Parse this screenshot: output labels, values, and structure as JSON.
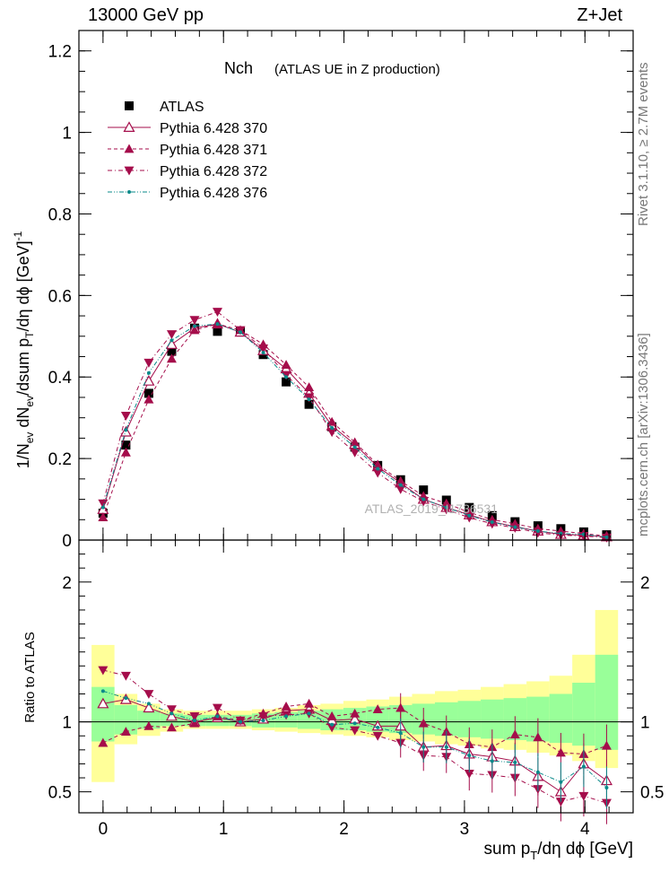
{
  "header": {
    "left": "13000 GeV pp",
    "right": "Z+Jet"
  },
  "side_text": {
    "rivet": "Rivet 3.1.10, ≥ 2.7M events",
    "mcplots": "mcplots.cern.ch [arXiv:1306.3436]"
  },
  "watermark": "ATLAS_2019_I1736531",
  "colors": {
    "band_inner": "#99ff99",
    "band_outer": "#ffff99",
    "model": "#a50d4b",
    "model_376": "#0a8a8a",
    "data": "#000000"
  },
  "chart_data": [
    {
      "type": "scatter",
      "panel": "main",
      "title": "Nch",
      "subtitle": "(ATLAS UE in Z production)",
      "ylabel": "1/N_ev dN_ev/dsum p_T/dη dϕ [GeV]^-1",
      "xlim": [
        -0.2,
        4.4
      ],
      "ylim": [
        0,
        1.25
      ],
      "yticks": [
        "0",
        "0.2",
        "0.4",
        "0.6",
        "0.8",
        "1",
        "1.2"
      ],
      "legend_position": "top-left",
      "x": [
        0.0,
        0.19,
        0.38,
        0.57,
        0.76,
        0.95,
        1.14,
        1.33,
        1.52,
        1.71,
        1.9,
        2.09,
        2.28,
        2.47,
        2.66,
        2.85,
        3.04,
        3.23,
        3.42,
        3.61,
        3.8,
        3.99,
        4.18
      ],
      "series": [
        {
          "name": "ATLAS",
          "marker": "square",
          "values": [
            0.066,
            0.233,
            0.36,
            0.463,
            0.52,
            0.512,
            0.512,
            0.455,
            0.388,
            0.333,
            0.278,
            0.228,
            0.183,
            0.148,
            0.123,
            0.098,
            0.08,
            0.06,
            0.045,
            0.035,
            0.028,
            0.02,
            0.013
          ]
        },
        {
          "name": "Pythia 6.428 370",
          "marker": "triangle-open",
          "line": "solid",
          "values": [
            0.075,
            0.265,
            0.39,
            0.48,
            0.52,
            0.53,
            0.51,
            0.465,
            0.42,
            0.36,
            0.28,
            0.235,
            0.18,
            0.14,
            0.1,
            0.08,
            0.062,
            0.045,
            0.033,
            0.022,
            0.014,
            0.012,
            0.008
          ]
        },
        {
          "name": "Pythia 6.428 371",
          "marker": "triangle-up",
          "line": "dashed",
          "values": [
            0.056,
            0.215,
            0.345,
            0.445,
            0.515,
            0.53,
            0.515,
            0.48,
            0.43,
            0.375,
            0.29,
            0.24,
            0.185,
            0.145,
            0.108,
            0.09,
            0.068,
            0.05,
            0.04,
            0.028,
            0.022,
            0.016,
            0.01
          ]
        },
        {
          "name": "Pythia 6.428 372",
          "marker": "triangle-down",
          "line": "dashdot",
          "values": [
            0.09,
            0.305,
            0.435,
            0.505,
            0.54,
            0.56,
            0.515,
            0.47,
            0.405,
            0.35,
            0.265,
            0.215,
            0.165,
            0.125,
            0.095,
            0.075,
            0.055,
            0.04,
            0.03,
            0.018,
            0.012,
            0.01,
            0.006
          ]
        },
        {
          "name": "Pythia 6.428 376",
          "marker": "dot",
          "line": "dashdotdot",
          "values": [
            0.08,
            0.27,
            0.41,
            0.49,
            0.525,
            0.53,
            0.51,
            0.46,
            0.4,
            0.345,
            0.275,
            0.228,
            0.175,
            0.135,
            0.1,
            0.08,
            0.06,
            0.044,
            0.032,
            0.022,
            0.016,
            0.014,
            0.007
          ]
        }
      ]
    },
    {
      "type": "scatter",
      "panel": "ratio",
      "ylabel": "Ratio to ATLAS",
      "xlabel": "sum p_T/dη dϕ [GeV]",
      "xlim": [
        -0.2,
        4.4
      ],
      "ylim": [
        0.35,
        2.3
      ],
      "yticks": [
        "0.5",
        "1",
        "2"
      ],
      "xticks": [
        "0",
        "1",
        "2",
        "3",
        "4"
      ],
      "x": [
        0.0,
        0.19,
        0.38,
        0.57,
        0.76,
        0.95,
        1.14,
        1.33,
        1.52,
        1.71,
        1.9,
        2.09,
        2.28,
        2.47,
        2.66,
        2.85,
        3.04,
        3.23,
        3.42,
        3.61,
        3.8,
        3.99,
        4.18
      ],
      "bands": {
        "inner_lo": [
          0.86,
          0.91,
          0.95,
          0.97,
          0.97,
          0.97,
          0.97,
          0.96,
          0.96,
          0.95,
          0.94,
          0.94,
          0.93,
          0.92,
          0.91,
          0.9,
          0.89,
          0.88,
          0.87,
          0.86,
          0.85,
          0.83,
          0.8
        ],
        "inner_hi": [
          1.25,
          1.12,
          1.08,
          1.06,
          1.05,
          1.05,
          1.05,
          1.06,
          1.07,
          1.08,
          1.09,
          1.1,
          1.11,
          1.12,
          1.13,
          1.14,
          1.15,
          1.16,
          1.17,
          1.18,
          1.2,
          1.28,
          1.48
        ],
        "outer_lo": [
          0.57,
          0.84,
          0.9,
          0.93,
          0.95,
          0.95,
          0.95,
          0.94,
          0.93,
          0.92,
          0.91,
          0.9,
          0.89,
          0.87,
          0.86,
          0.84,
          0.83,
          0.81,
          0.8,
          0.78,
          0.76,
          0.72,
          0.67
        ],
        "outer_hi": [
          1.55,
          1.2,
          1.13,
          1.09,
          1.08,
          1.08,
          1.08,
          1.09,
          1.1,
          1.12,
          1.13,
          1.15,
          1.16,
          1.18,
          1.2,
          1.22,
          1.23,
          1.25,
          1.27,
          1.29,
          1.33,
          1.48,
          1.8
        ]
      },
      "series": [
        {
          "name": "Pythia 6.428 370",
          "values": [
            1.13,
            1.16,
            1.1,
            1.04,
            1.0,
            1.03,
            1.0,
            1.02,
            1.08,
            1.09,
            1.01,
            1.02,
            0.97,
            0.97,
            0.82,
            0.83,
            0.77,
            0.75,
            0.72,
            0.61,
            0.5,
            0.7,
            0.58
          ]
        },
        {
          "name": "Pythia 6.428 371",
          "values": [
            0.85,
            0.93,
            0.97,
            0.96,
            0.99,
            1.04,
            1.01,
            1.06,
            1.11,
            1.13,
            1.04,
            1.06,
            1.09,
            1.1,
            0.99,
            0.93,
            0.84,
            0.82,
            0.91,
            0.89,
            0.78,
            0.77,
            0.83
          ]
        },
        {
          "name": "Pythia 6.428 372",
          "values": [
            1.37,
            1.33,
            1.2,
            1.09,
            1.04,
            1.1,
            1.01,
            1.04,
            1.05,
            1.06,
            0.96,
            0.94,
            0.9,
            0.85,
            0.76,
            0.75,
            0.63,
            0.62,
            0.6,
            0.52,
            0.43,
            0.47,
            0.42
          ]
        },
        {
          "name": "Pythia 6.428 376",
          "values": [
            1.22,
            1.17,
            1.13,
            1.06,
            1.01,
            1.04,
            1.0,
            1.01,
            1.04,
            1.06,
            0.98,
            0.99,
            0.96,
            0.92,
            0.82,
            0.82,
            0.76,
            0.72,
            0.71,
            0.64,
            0.57,
            0.68,
            0.53
          ]
        }
      ]
    }
  ]
}
